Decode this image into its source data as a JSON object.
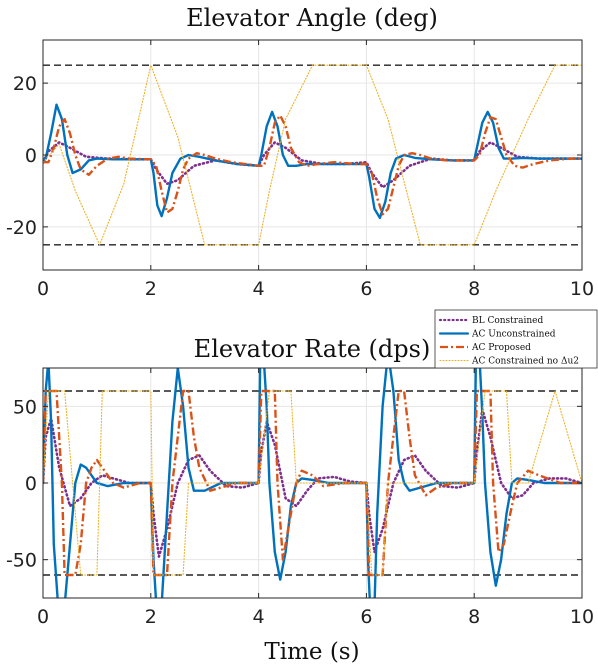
{
  "chart_data": [
    {
      "type": "line",
      "title": "Elevator Angle (deg)",
      "xlabel": "",
      "ylabel": "",
      "xlim": [
        0,
        10
      ],
      "ylim": [
        -32,
        32
      ],
      "xticks": [
        0,
        2,
        4,
        6,
        8,
        10
      ],
      "yticks": [
        -20,
        0,
        20
      ],
      "xtick_labels": [
        "0",
        "2",
        "4",
        "6",
        "8",
        "10"
      ],
      "ytick_labels": [
        "-20",
        "0",
        "20"
      ],
      "grid": true,
      "limit_lines": [
        25,
        -25
      ],
      "series": [
        {
          "name": "BL Constrained",
          "color": "#7E2F8E",
          "style": "dotted",
          "x": [
            0,
            0.1,
            0.3,
            0.5,
            0.8,
            1.2,
            1.6,
            2.0,
            2.1,
            2.3,
            2.5,
            2.8,
            3.2,
            3.6,
            4.0,
            4.1,
            4.3,
            4.5,
            4.8,
            5.2,
            5.6,
            6.0,
            6.1,
            6.3,
            6.5,
            6.8,
            7.2,
            7.6,
            8.0,
            8.1,
            8.3,
            8.5,
            8.8,
            9.2,
            9.6,
            10.0
          ],
          "y": [
            -2,
            1,
            3.5,
            2,
            -0.5,
            -1,
            -1.2,
            -1.2,
            -4,
            -8,
            -7,
            -3,
            -1.5,
            -2.5,
            -3,
            0,
            3.5,
            2,
            -1.5,
            -2.5,
            -2.5,
            -2,
            -5,
            -9,
            -7,
            -3,
            -1,
            -1.5,
            -1.5,
            1,
            3.5,
            2,
            -0.5,
            -1,
            -1,
            -1
          ]
        },
        {
          "name": "AC Unconstrained",
          "color": "#0072BD",
          "style": "solid",
          "x": [
            0,
            0.05,
            0.15,
            0.25,
            0.35,
            0.45,
            0.55,
            0.7,
            0.85,
            1.0,
            1.3,
            1.6,
            2.0,
            2.05,
            2.12,
            2.2,
            2.3,
            2.4,
            2.55,
            2.7,
            2.9,
            3.2,
            3.6,
            4.0,
            4.05,
            4.15,
            4.25,
            4.35,
            4.45,
            4.55,
            4.7,
            4.9,
            5.2,
            5.6,
            6.0,
            6.05,
            6.15,
            6.25,
            6.35,
            6.45,
            6.55,
            6.7,
            6.9,
            7.2,
            7.6,
            8.0,
            8.05,
            8.15,
            8.25,
            8.35,
            8.45,
            8.55,
            8.7,
            8.9,
            9.2,
            9.6,
            10.0
          ],
          "y": [
            -2,
            -1,
            6,
            14,
            10,
            0,
            -5,
            -4,
            -1.5,
            -1,
            -1.2,
            -1.2,
            -1.2,
            -5,
            -14,
            -17,
            -12,
            -5,
            -1,
            0,
            -0.5,
            -1.5,
            -2.5,
            -3,
            0,
            8,
            12,
            8,
            0,
            -3,
            -3,
            -2.5,
            -2.5,
            -2.5,
            -2.5,
            -6,
            -15,
            -17.5,
            -13,
            -5,
            -1,
            0,
            -0.8,
            -1.2,
            -1.5,
            -1.5,
            2,
            9,
            12,
            9,
            2,
            -1,
            -1,
            -0.8,
            -1,
            -1,
            -1
          ]
        },
        {
          "name": "AC Proposed",
          "color": "#D95319",
          "style": "dashdot",
          "x": [
            0,
            0.1,
            0.2,
            0.3,
            0.4,
            0.5,
            0.6,
            0.7,
            0.85,
            1.0,
            1.2,
            1.4,
            1.6,
            2.0,
            2.1,
            2.2,
            2.3,
            2.4,
            2.5,
            2.6,
            2.7,
            2.85,
            3.0,
            3.2,
            3.5,
            4.0,
            4.1,
            4.2,
            4.3,
            4.4,
            4.5,
            4.6,
            4.75,
            4.9,
            5.1,
            5.4,
            5.8,
            6.0,
            6.1,
            6.2,
            6.3,
            6.4,
            6.5,
            6.6,
            6.7,
            6.85,
            7.0,
            7.2,
            7.5,
            8.0,
            8.1,
            8.2,
            8.3,
            8.4,
            8.5,
            8.6,
            8.75,
            8.9,
            9.1,
            9.4,
            9.8,
            10.0
          ],
          "y": [
            -2,
            -2,
            2,
            8,
            10,
            6,
            0,
            -4,
            -5.5,
            -3,
            -1,
            -0.5,
            -1,
            -1.2,
            -3,
            -10,
            -16,
            -15,
            -10,
            -4,
            -1,
            0.5,
            0,
            -1,
            -2,
            -3,
            -3,
            2,
            9,
            11,
            8,
            2,
            -2,
            -3,
            -2.5,
            -2,
            -2.5,
            -2.5,
            -5,
            -12,
            -16.5,
            -15,
            -9,
            -3,
            0,
            0.5,
            0,
            -1,
            -1.5,
            -1.5,
            0,
            6,
            10.5,
            10,
            5,
            0,
            -3,
            -3.5,
            -2.5,
            -1.5,
            -1,
            -1
          ]
        },
        {
          "name": "AC Constrained no Δu2",
          "color": "#EDB120",
          "style": "dotted-thin",
          "x": [
            0,
            0.3,
            0.6,
            1.05,
            1.5,
            2.0,
            2.5,
            3.0,
            3.5,
            4.0,
            4.2,
            4.5,
            5.0,
            5.5,
            6.0,
            6.4,
            7.0,
            7.5,
            8.0,
            8.4,
            9.0,
            9.5,
            10.0
          ],
          "y": [
            -2,
            3,
            -10,
            -25,
            -8,
            25,
            5,
            -25,
            -25,
            -25,
            -10,
            10,
            25,
            25,
            25,
            10,
            -25,
            -25,
            -25,
            -10,
            10,
            25,
            25
          ]
        }
      ]
    },
    {
      "type": "line",
      "title": "Elevator Rate (dps)",
      "xlabel": "Time (s)",
      "ylabel": "",
      "xlim": [
        0,
        10
      ],
      "ylim": [
        -75,
        75
      ],
      "xticks": [
        0,
        2,
        4,
        6,
        8,
        10
      ],
      "yticks": [
        -50,
        0,
        50
      ],
      "xtick_labels": [
        "0",
        "2",
        "4",
        "6",
        "8",
        "10"
      ],
      "ytick_labels": [
        "-50",
        "0",
        "50"
      ],
      "grid": true,
      "legend_position": "top-right",
      "limit_lines": [
        60,
        -60
      ],
      "series": [
        {
          "name": "BL Constrained",
          "color": "#7E2F8E",
          "style": "dotted",
          "x": [
            0,
            0.05,
            0.15,
            0.3,
            0.5,
            0.7,
            0.9,
            1.1,
            1.3,
            1.6,
            2.0,
            2.05,
            2.15,
            2.3,
            2.5,
            2.7,
            2.9,
            3.1,
            3.4,
            3.7,
            4.0,
            4.05,
            4.15,
            4.3,
            4.5,
            4.7,
            4.9,
            5.1,
            5.4,
            5.7,
            6.0,
            6.05,
            6.15,
            6.3,
            6.5,
            6.7,
            6.9,
            7.1,
            7.4,
            7.7,
            8.0,
            8.05,
            8.15,
            8.3,
            8.5,
            8.7,
            8.9,
            9.1,
            9.4,
            9.7,
            10.0
          ],
          "y": [
            0,
            30,
            42,
            10,
            -15,
            -10,
            0,
            5,
            3,
            0,
            0,
            -20,
            -48,
            -30,
            0,
            15,
            18,
            8,
            -2,
            -3,
            0,
            20,
            40,
            25,
            -10,
            -15,
            -5,
            3,
            4,
            1,
            0,
            -20,
            -45,
            -30,
            0,
            15,
            18,
            8,
            -2,
            -3,
            0,
            20,
            48,
            30,
            0,
            -10,
            -8,
            0,
            3,
            3,
            0
          ]
        },
        {
          "name": "AC Unconstrained",
          "color": "#0072BD",
          "style": "solid",
          "x": [
            0,
            0.05,
            0.1,
            0.15,
            0.2,
            0.3,
            0.4,
            0.5,
            0.6,
            0.7,
            0.8,
            0.9,
            1.0,
            1.2,
            1.5,
            2.0,
            2.05,
            2.12,
            2.2,
            2.3,
            2.4,
            2.5,
            2.6,
            2.7,
            2.8,
            3.0,
            3.3,
            3.6,
            4.0,
            4.03,
            4.08,
            4.15,
            4.2,
            4.3,
            4.4,
            4.5,
            4.6,
            4.7,
            4.8,
            5.0,
            5.3,
            5.6,
            6.0,
            6.03,
            6.08,
            6.15,
            6.2,
            6.3,
            6.4,
            6.5,
            6.6,
            6.7,
            6.8,
            7.0,
            7.3,
            7.6,
            8.0,
            8.03,
            8.08,
            8.15,
            8.2,
            8.3,
            8.4,
            8.5,
            8.6,
            8.7,
            8.8,
            9.0,
            9.3,
            9.6,
            10.0
          ],
          "y": [
            0,
            60,
            80,
            40,
            -40,
            -90,
            -80,
            -40,
            0,
            12,
            10,
            5,
            0,
            -2,
            0,
            0,
            -50,
            -90,
            -80,
            -20,
            40,
            75,
            50,
            10,
            -5,
            -5,
            0,
            0,
            0,
            80,
            90,
            50,
            0,
            -45,
            -63,
            -45,
            -15,
            0,
            3,
            2,
            0,
            0,
            0,
            -50,
            -90,
            -80,
            -20,
            50,
            85,
            60,
            15,
            0,
            -5,
            -3,
            0,
            0,
            0,
            75,
            95,
            45,
            0,
            -45,
            -67,
            -50,
            -20,
            0,
            3,
            2,
            0,
            0,
            0
          ]
        },
        {
          "name": "AC Proposed",
          "color": "#D95319",
          "style": "dashdot",
          "x": [
            0,
            0.05,
            0.15,
            0.25,
            0.35,
            0.4,
            0.6,
            0.7,
            0.8,
            0.9,
            1.0,
            1.1,
            1.3,
            1.5,
            1.8,
            2.0,
            2.05,
            2.2,
            2.3,
            2.4,
            2.6,
            2.7,
            2.8,
            2.9,
            3.1,
            3.3,
            3.6,
            4.0,
            4.05,
            4.2,
            4.3,
            4.35,
            4.45,
            4.55,
            4.7,
            4.8,
            5.0,
            5.2,
            5.6,
            6.0,
            6.05,
            6.2,
            6.3,
            6.4,
            6.6,
            6.7,
            6.8,
            6.9,
            7.1,
            7.3,
            7.6,
            8.0,
            8.05,
            8.2,
            8.3,
            8.35,
            8.45,
            8.55,
            8.7,
            8.8,
            9.0,
            9.2,
            9.6,
            10.0
          ],
          "y": [
            0,
            60,
            60,
            60,
            0,
            -60,
            -60,
            -40,
            0,
            10,
            15,
            10,
            0,
            -3,
            0,
            0,
            -60,
            -60,
            -60,
            0,
            60,
            60,
            30,
            10,
            -5,
            -3,
            0,
            0,
            60,
            60,
            60,
            0,
            -50,
            -30,
            0,
            8,
            5,
            -2,
            0,
            0,
            -60,
            -60,
            -60,
            0,
            60,
            60,
            30,
            5,
            -8,
            -3,
            0,
            0,
            60,
            60,
            60,
            0,
            -45,
            -40,
            -15,
            0,
            8,
            5,
            0,
            0
          ]
        },
        {
          "name": "AC Constrained no Δu2",
          "color": "#EDB120",
          "style": "dotted-thin",
          "x": [
            0,
            0.1,
            0.2,
            0.4,
            0.7,
            0.75,
            1.0,
            1.05,
            1.1,
            1.5,
            1.6,
            1.7,
            2.0,
            2.05,
            2.2,
            2.6,
            2.7,
            3.0,
            3.1,
            3.5,
            4.0,
            4.2,
            4.3,
            4.6,
            4.7,
            5.0,
            5.5,
            6.0,
            6.1,
            6.3,
            6.4,
            6.8,
            6.9,
            7.5,
            8.0,
            8.2,
            8.4,
            8.6,
            8.7,
            9.0,
            9.5,
            10.0
          ],
          "y": [
            0,
            60,
            60,
            60,
            -60,
            -60,
            -60,
            0,
            60,
            60,
            60,
            60,
            60,
            -60,
            -60,
            -60,
            0,
            0,
            0,
            0,
            0,
            60,
            60,
            60,
            0,
            0,
            0,
            0,
            -60,
            -60,
            0,
            0,
            0,
            0,
            0,
            60,
            60,
            60,
            0,
            0,
            60,
            0
          ]
        }
      ]
    }
  ]
}
